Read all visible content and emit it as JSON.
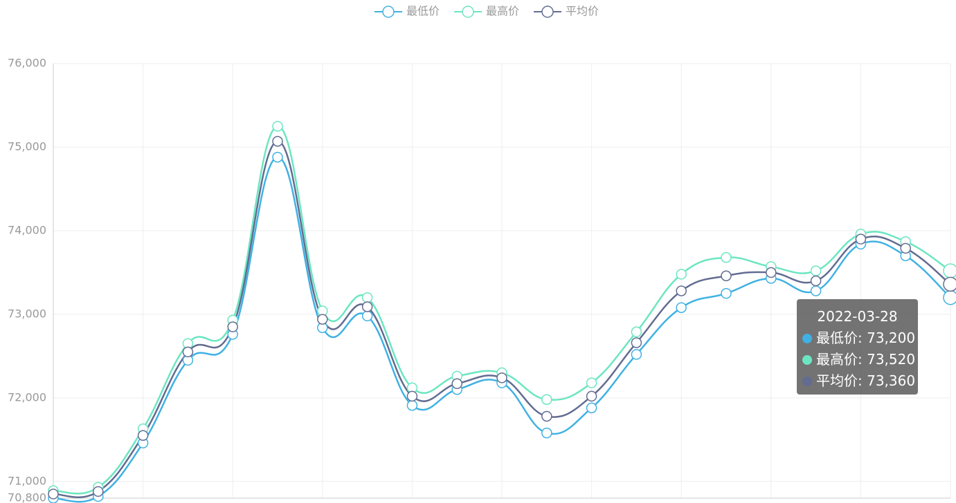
{
  "chart_data": {
    "type": "line",
    "smooth": true,
    "grid": true,
    "legend": "top",
    "categories": [
      null,
      null,
      null,
      null,
      null,
      null,
      null,
      null,
      null,
      null,
      null,
      null,
      null,
      null,
      null,
      null,
      null,
      null,
      null,
      null,
      null
    ],
    "ylim": [
      70800,
      76000
    ],
    "yticks": [
      {
        "value": 70800,
        "label": "70,800"
      },
      {
        "value": 71000,
        "label": "71,000"
      },
      {
        "value": 72000,
        "label": "72,000"
      },
      {
        "value": 73000,
        "label": "73,000"
      },
      {
        "value": 74000,
        "label": "74,000"
      },
      {
        "value": 75000,
        "label": "75,000"
      },
      {
        "value": 76000,
        "label": "76,000"
      }
    ],
    "series": [
      {
        "name": "最低价",
        "color": "#3fb1e3",
        "values": [
          70800,
          70820,
          71460,
          72450,
          72760,
          74880,
          72840,
          72980,
          71910,
          72100,
          72180,
          71580,
          71880,
          72520,
          73080,
          73250,
          73430,
          73280,
          73840,
          73700,
          73200
        ]
      },
      {
        "name": "最高价",
        "color": "#6be6c1",
        "values": [
          70890,
          70930,
          71630,
          72650,
          72930,
          75250,
          73040,
          73200,
          72120,
          72260,
          72300,
          71980,
          72180,
          72790,
          73480,
          73680,
          73570,
          73520,
          73960,
          73870,
          73520
        ]
      },
      {
        "name": "平均价",
        "color": "#626c91",
        "values": [
          70850,
          70880,
          71550,
          72550,
          72850,
          75070,
          72940,
          73090,
          72020,
          72170,
          72240,
          71780,
          72020,
          72660,
          73280,
          73460,
          73500,
          73400,
          73900,
          73790,
          73360
        ]
      }
    ],
    "tooltip": {
      "title": "2022-03-28",
      "labels": [
        "73,200",
        "73,520",
        "73,360"
      ]
    }
  }
}
